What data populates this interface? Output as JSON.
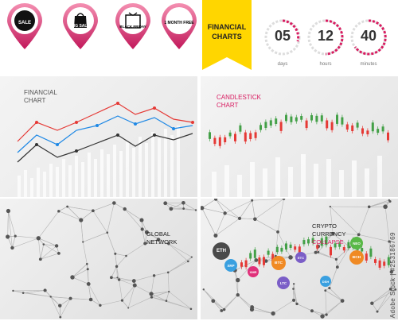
{
  "top": {
    "pins": [
      {
        "text": "SALE",
        "icon": "sale-badge-icon"
      },
      {
        "text": "BIG SALE",
        "icon": "shopping-bag-icon"
      },
      {
        "text": "BLACK FRIDAY",
        "icon": "gift-box-icon"
      },
      {
        "text": "1 MONTH FREE",
        "icon": "one-month-free-icon"
      }
    ],
    "ribbon": {
      "line1": "FINANCIAL",
      "line2": "CHARTS"
    },
    "countdown": [
      {
        "value": "05",
        "caption": "days"
      },
      {
        "value": "12",
        "caption": "hours"
      },
      {
        "value": "40",
        "caption": "minutes"
      }
    ]
  },
  "panels": {
    "financial": {
      "line1": "FINANCIAL",
      "line2": "CHART"
    },
    "candlestick": {
      "line1": "CANDLESTICK",
      "line2": "CHART"
    },
    "network": {
      "line1": "GLOBAL",
      "line2": "NETWORK"
    },
    "crypto": {
      "line1": "CRYPTO",
      "line2": "CURRENCY",
      "line3": "COLLAPSE"
    }
  },
  "coins": [
    {
      "label": "ETH",
      "color": "#4a4a4a"
    },
    {
      "label": "BTC",
      "color": "#f08a24"
    },
    {
      "label": "XRP",
      "color": "#3aa0e0"
    },
    {
      "label": "LTC",
      "color": "#7b5ec7"
    },
    {
      "label": "XMR",
      "color": "#e0307a"
    },
    {
      "label": "ETC",
      "color": "#7b5ec7"
    },
    {
      "label": "DSH",
      "color": "#3aa0e0"
    },
    {
      "label": "BCH",
      "color": "#f08a24"
    },
    {
      "label": "NEO",
      "color": "#59b847"
    }
  ],
  "watermark": "Adobe Stock | #253186769",
  "colors": {
    "pin_from": "#f06292",
    "pin_to": "#c2185b",
    "ribbon": "#ffd600",
    "accent_pink": "#d81b60",
    "red_series": "#e53935",
    "blue_series": "#1e88e5",
    "dark_series": "#333333",
    "candle_up": "#43a047",
    "candle_down": "#e53935"
  }
}
